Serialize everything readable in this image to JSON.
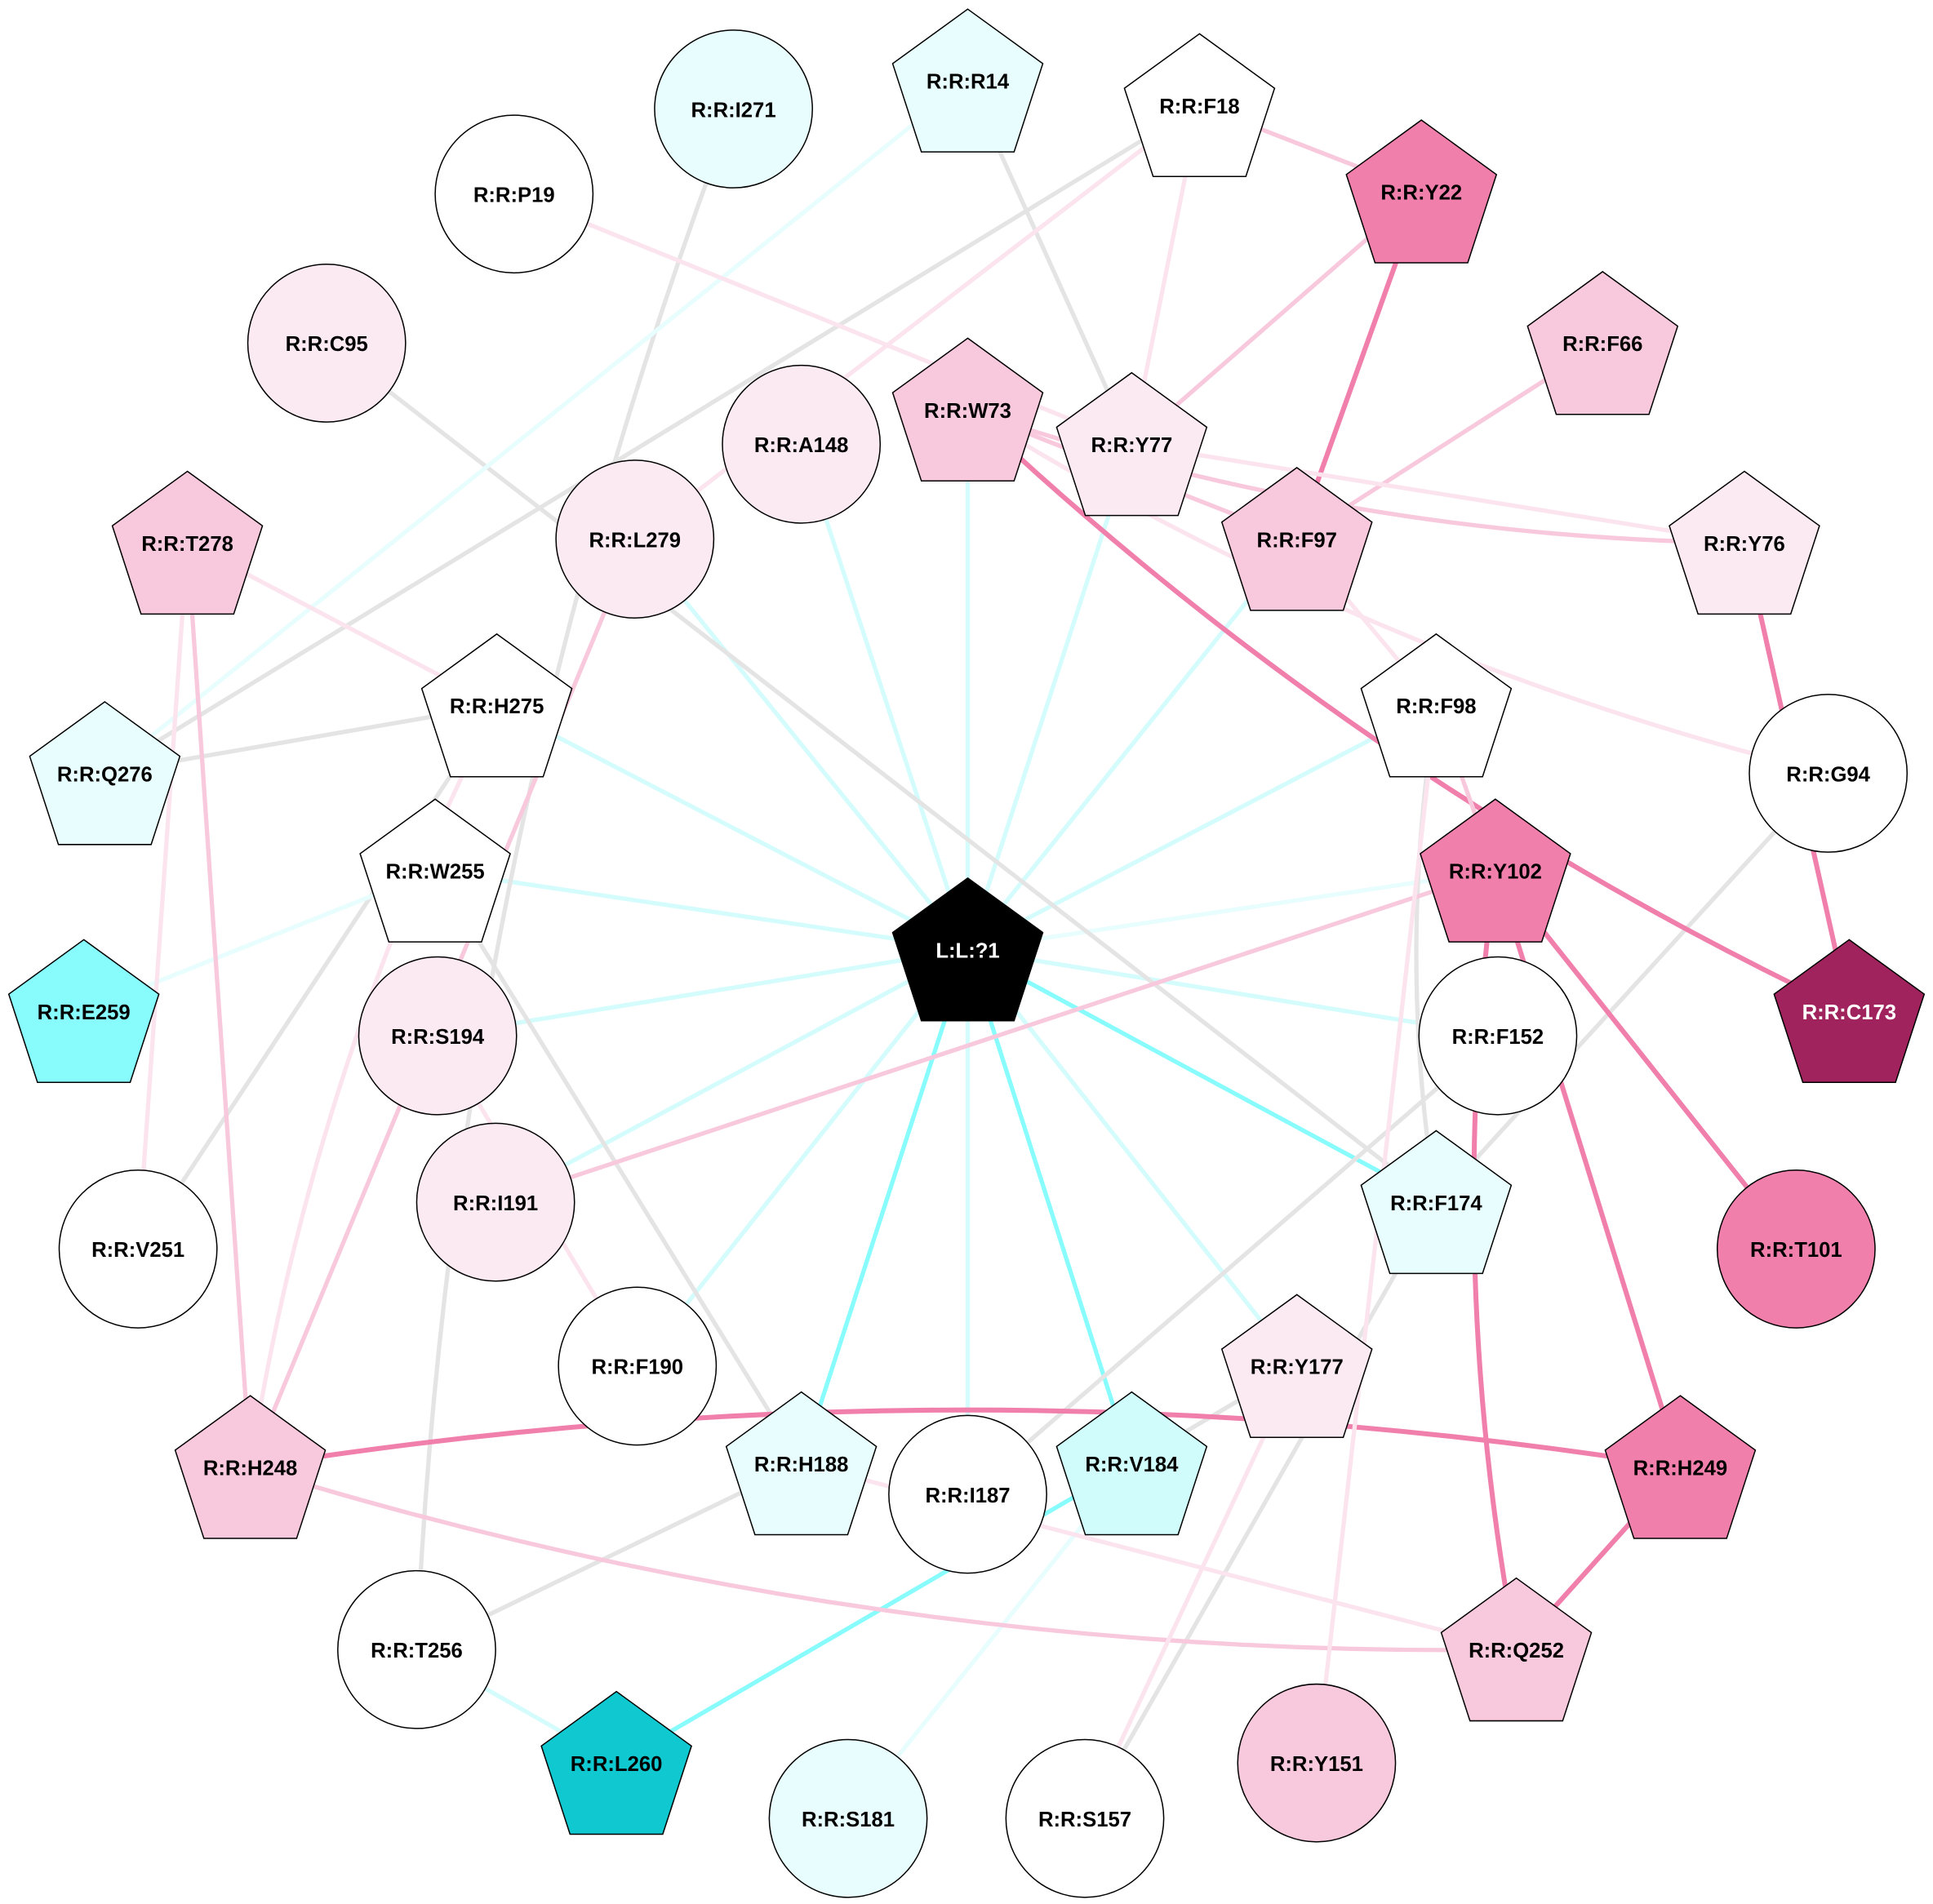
{
  "colors": {
    "light_cyan_edge": "#d4fcfc",
    "faint_cyan_edge": "#e8fdfd",
    "cyan_edge": "#88fcfc",
    "gray_edge": "#e4e4e4",
    "pink_edge": "#f8c8dc",
    "light_pink_edge": "#fbe4ee",
    "dark_pink_edge": "#f07fac"
  },
  "nodes": [
    {
      "id": "L:L:?1",
      "shape": "pentagon",
      "fill": "#000000",
      "text": "#ffffff"
    },
    {
      "id": "R:R:I271",
      "shape": "circle",
      "fill": "#e8fdfd"
    },
    {
      "id": "R:R:R14",
      "shape": "pentagon",
      "fill": "#e8fdfd"
    },
    {
      "id": "R:R:F18",
      "shape": "pentagon",
      "fill": "#ffffff"
    },
    {
      "id": "R:R:Y22",
      "shape": "pentagon",
      "fill": "#f07fac"
    },
    {
      "id": "R:R:P19",
      "shape": "circle",
      "fill": "#ffffff"
    },
    {
      "id": "R:R:C95",
      "shape": "circle",
      "fill": "#fbeaf2"
    },
    {
      "id": "R:R:F66",
      "shape": "pentagon",
      "fill": "#f8c8dc"
    },
    {
      "id": "R:R:W73",
      "shape": "pentagon",
      "fill": "#f8c8dc"
    },
    {
      "id": "R:R:A148",
      "shape": "circle",
      "fill": "#fbeaf2"
    },
    {
      "id": "R:R:Y77",
      "shape": "pentagon",
      "fill": "#fbeaf2"
    },
    {
      "id": "R:R:L279",
      "shape": "circle",
      "fill": "#fbeaf2"
    },
    {
      "id": "R:R:T278",
      "shape": "pentagon",
      "fill": "#f8c8dc"
    },
    {
      "id": "R:R:F97",
      "shape": "pentagon",
      "fill": "#f8c8dc"
    },
    {
      "id": "R:R:Y76",
      "shape": "pentagon",
      "fill": "#fbeaf2"
    },
    {
      "id": "R:R:H275",
      "shape": "pentagon",
      "fill": "#ffffff"
    },
    {
      "id": "R:R:F98",
      "shape": "pentagon",
      "fill": "#ffffff"
    },
    {
      "id": "R:R:Q276",
      "shape": "pentagon",
      "fill": "#e8fdfd"
    },
    {
      "id": "R:R:G94",
      "shape": "circle",
      "fill": "#ffffff"
    },
    {
      "id": "R:R:W255",
      "shape": "pentagon",
      "fill": "#ffffff"
    },
    {
      "id": "R:R:Y102",
      "shape": "pentagon",
      "fill": "#f07fac"
    },
    {
      "id": "R:R:E259",
      "shape": "pentagon",
      "fill": "#88fcfc"
    },
    {
      "id": "R:R:C173",
      "shape": "pentagon",
      "fill": "#a0235e",
      "text": "#ffffff"
    },
    {
      "id": "R:R:S194",
      "shape": "circle",
      "fill": "#fbeaf2"
    },
    {
      "id": "R:R:F152",
      "shape": "circle",
      "fill": "#ffffff"
    },
    {
      "id": "R:R:I191",
      "shape": "circle",
      "fill": "#fbeaf2"
    },
    {
      "id": "R:R:F174",
      "shape": "pentagon",
      "fill": "#e8fdfd"
    },
    {
      "id": "R:R:V251",
      "shape": "circle",
      "fill": "#ffffff"
    },
    {
      "id": "R:R:T101",
      "shape": "circle",
      "fill": "#f07fac"
    },
    {
      "id": "R:R:F190",
      "shape": "circle",
      "fill": "#ffffff"
    },
    {
      "id": "R:R:Y177",
      "shape": "pentagon",
      "fill": "#fbeaf2"
    },
    {
      "id": "R:R:H248",
      "shape": "pentagon",
      "fill": "#f8c8dc"
    },
    {
      "id": "R:R:H188",
      "shape": "pentagon",
      "fill": "#e8fdfd"
    },
    {
      "id": "R:R:I187",
      "shape": "circle",
      "fill": "#ffffff"
    },
    {
      "id": "R:R:V184",
      "shape": "pentagon",
      "fill": "#d0fcfc"
    },
    {
      "id": "R:R:H249",
      "shape": "pentagon",
      "fill": "#f07fac"
    },
    {
      "id": "R:R:T256",
      "shape": "circle",
      "fill": "#ffffff"
    },
    {
      "id": "R:R:Q252",
      "shape": "pentagon",
      "fill": "#f8c8dc"
    },
    {
      "id": "R:R:L260",
      "shape": "pentagon",
      "fill": "#10c8d0"
    },
    {
      "id": "R:R:S181",
      "shape": "circle",
      "fill": "#e8fdfd"
    },
    {
      "id": "R:R:S157",
      "shape": "circle",
      "fill": "#ffffff"
    },
    {
      "id": "R:R:Y151",
      "shape": "circle",
      "fill": "#f8c8dc"
    }
  ],
  "edges": [
    [
      "L:L:?1",
      "R:R:A148",
      "light_cyan_edge"
    ],
    [
      "L:L:?1",
      "R:R:L279",
      "light_cyan_edge"
    ],
    [
      "L:L:?1",
      "R:R:W73",
      "light_cyan_edge"
    ],
    [
      "L:L:?1",
      "R:R:Y77",
      "light_cyan_edge"
    ],
    [
      "L:L:?1",
      "R:R:F97",
      "light_cyan_edge"
    ],
    [
      "L:L:?1",
      "R:R:F98",
      "light_cyan_edge"
    ],
    [
      "L:L:?1",
      "R:R:Y102",
      "faint_cyan_edge"
    ],
    [
      "L:L:?1",
      "R:R:F152",
      "light_cyan_edge"
    ],
    [
      "L:L:?1",
      "R:R:F174",
      "cyan_edge"
    ],
    [
      "L:L:?1",
      "R:R:Y177",
      "light_cyan_edge"
    ],
    [
      "L:L:?1",
      "R:R:V184",
      "cyan_edge"
    ],
    [
      "L:L:?1",
      "R:R:I187",
      "light_cyan_edge"
    ],
    [
      "L:L:?1",
      "R:R:H188",
      "cyan_edge"
    ],
    [
      "L:L:?1",
      "R:R:F190",
      "light_cyan_edge"
    ],
    [
      "L:L:?1",
      "R:R:I191",
      "light_cyan_edge"
    ],
    [
      "L:L:?1",
      "R:R:S194",
      "light_cyan_edge"
    ],
    [
      "L:L:?1",
      "R:R:W255",
      "light_cyan_edge"
    ],
    [
      "L:L:?1",
      "R:R:H275",
      "light_cyan_edge"
    ],
    [
      "R:R:C95",
      "R:R:F174",
      "gray_edge"
    ],
    [
      "R:R:I271",
      "R:R:T256",
      "gray_edge"
    ],
    [
      "R:R:R14",
      "R:R:Y77",
      "gray_edge"
    ],
    [
      "R:R:F18",
      "R:R:Q276",
      "gray_edge"
    ],
    [
      "R:R:H275",
      "R:R:Q276",
      "gray_edge"
    ],
    [
      "R:R:H275",
      "R:R:V251",
      "gray_edge"
    ],
    [
      "R:R:W255",
      "R:R:H188",
      "gray_edge"
    ],
    [
      "R:R:F98",
      "R:R:F174",
      "gray_edge"
    ],
    [
      "R:R:G94",
      "R:R:F174",
      "gray_edge"
    ],
    [
      "R:R:F152",
      "R:R:I187",
      "gray_edge"
    ],
    [
      "R:R:F174",
      "R:R:S157",
      "gray_edge"
    ],
    [
      "R:R:Y177",
      "R:R:V184",
      "gray_edge"
    ],
    [
      "R:R:H188",
      "R:R:T256",
      "gray_edge"
    ],
    [
      "R:R:R14",
      "R:R:Q276",
      "faint_cyan_edge"
    ],
    [
      "R:R:W255",
      "R:R:E259",
      "faint_cyan_edge"
    ],
    [
      "R:R:T256",
      "R:R:L260",
      "light_cyan_edge"
    ],
    [
      "R:R:V184",
      "R:R:S181",
      "faint_cyan_edge"
    ],
    [
      "R:R:V184",
      "R:R:L260",
      "cyan_edge"
    ],
    [
      "R:R:F18",
      "R:R:Y22",
      "pink_edge"
    ],
    [
      "R:R:Y22",
      "R:R:Y77",
      "pink_edge"
    ],
    [
      "R:R:Y22",
      "R:R:F97",
      "dark_pink_edge"
    ],
    [
      "R:R:F66",
      "R:R:F97",
      "pink_edge"
    ],
    [
      "R:R:W73",
      "R:R:F97",
      "pink_edge"
    ],
    [
      "R:R:W73",
      "R:R:Y76",
      "pink_edge"
    ],
    [
      "R:R:W73",
      "R:R:C173",
      "dark_pink_edge"
    ],
    [
      "R:R:Y77",
      "R:R:Y76",
      "light_pink_edge"
    ],
    [
      "R:R:W73",
      "R:R:G94",
      "light_pink_edge"
    ],
    [
      "R:R:F97",
      "R:R:F98",
      "light_pink_edge"
    ],
    [
      "R:R:Y76",
      "R:R:C173",
      "dark_pink_edge"
    ],
    [
      "R:R:F98",
      "R:R:Y102",
      "pink_edge"
    ],
    [
      "R:R:Y102",
      "R:R:I191",
      "pink_edge"
    ],
    [
      "R:R:Y102",
      "R:R:T101",
      "dark_pink_edge"
    ],
    [
      "R:R:Y102",
      "R:R:H249",
      "dark_pink_edge"
    ],
    [
      "R:R:Y102",
      "R:R:Q252",
      "dark_pink_edge"
    ],
    [
      "R:R:H249",
      "R:R:Q252",
      "dark_pink_edge"
    ],
    [
      "R:R:H249",
      "R:R:H248",
      "dark_pink_edge"
    ],
    [
      "R:R:H248",
      "R:R:Q252",
      "pink_edge"
    ],
    [
      "R:R:H248",
      "R:R:L279",
      "pink_edge"
    ],
    [
      "R:R:T278",
      "R:R:H248",
      "pink_edge"
    ],
    [
      "R:R:T278",
      "R:R:H275",
      "light_pink_edge"
    ],
    [
      "R:R:T278",
      "R:R:V251",
      "light_pink_edge"
    ],
    [
      "R:R:H275",
      "R:R:H248",
      "light_pink_edge"
    ],
    [
      "R:R:P19",
      "R:R:Y77",
      "light_pink_edge"
    ],
    [
      "R:R:F18",
      "R:R:L279",
      "light_pink_edge"
    ],
    [
      "R:R:F18",
      "R:R:Y77",
      "light_pink_edge"
    ],
    [
      "R:R:S194",
      "R:R:F190",
      "light_pink_edge"
    ],
    [
      "R:R:Y177",
      "R:R:S157",
      "light_pink_edge"
    ],
    [
      "R:R:F98",
      "R:R:Y151",
      "light_pink_edge"
    ],
    [
      "R:R:H188",
      "R:R:Q252",
      "light_pink_edge"
    ]
  ]
}
